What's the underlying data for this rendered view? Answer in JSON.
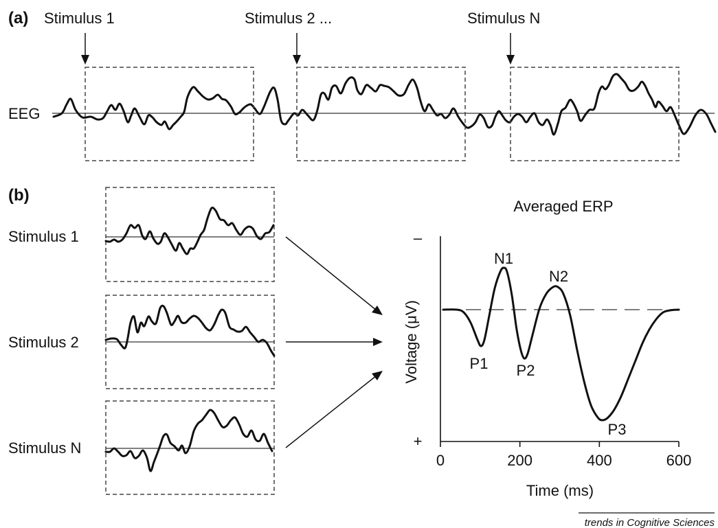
{
  "panel_a": {
    "label": "(a)",
    "trace_label": "EEG",
    "stimuli": [
      "Stimulus 1",
      "Stimulus 2 ...",
      "Stimulus N"
    ]
  },
  "panel_b": {
    "label": "(b)",
    "epochs": [
      "Stimulus 1",
      "Stimulus 2",
      "Stimulus N"
    ],
    "erp": {
      "title": "Averaged ERP",
      "ylabel": "Voltage (μV)",
      "xlabel": "Time (ms)",
      "y_top_sign": "–",
      "y_bottom_sign": "+",
      "x_ticks": [
        0,
        200,
        400,
        600
      ],
      "peaks": [
        "P1",
        "N1",
        "P2",
        "N2",
        "P3"
      ]
    }
  },
  "credit": "trends in Cognitive Sciences"
}
